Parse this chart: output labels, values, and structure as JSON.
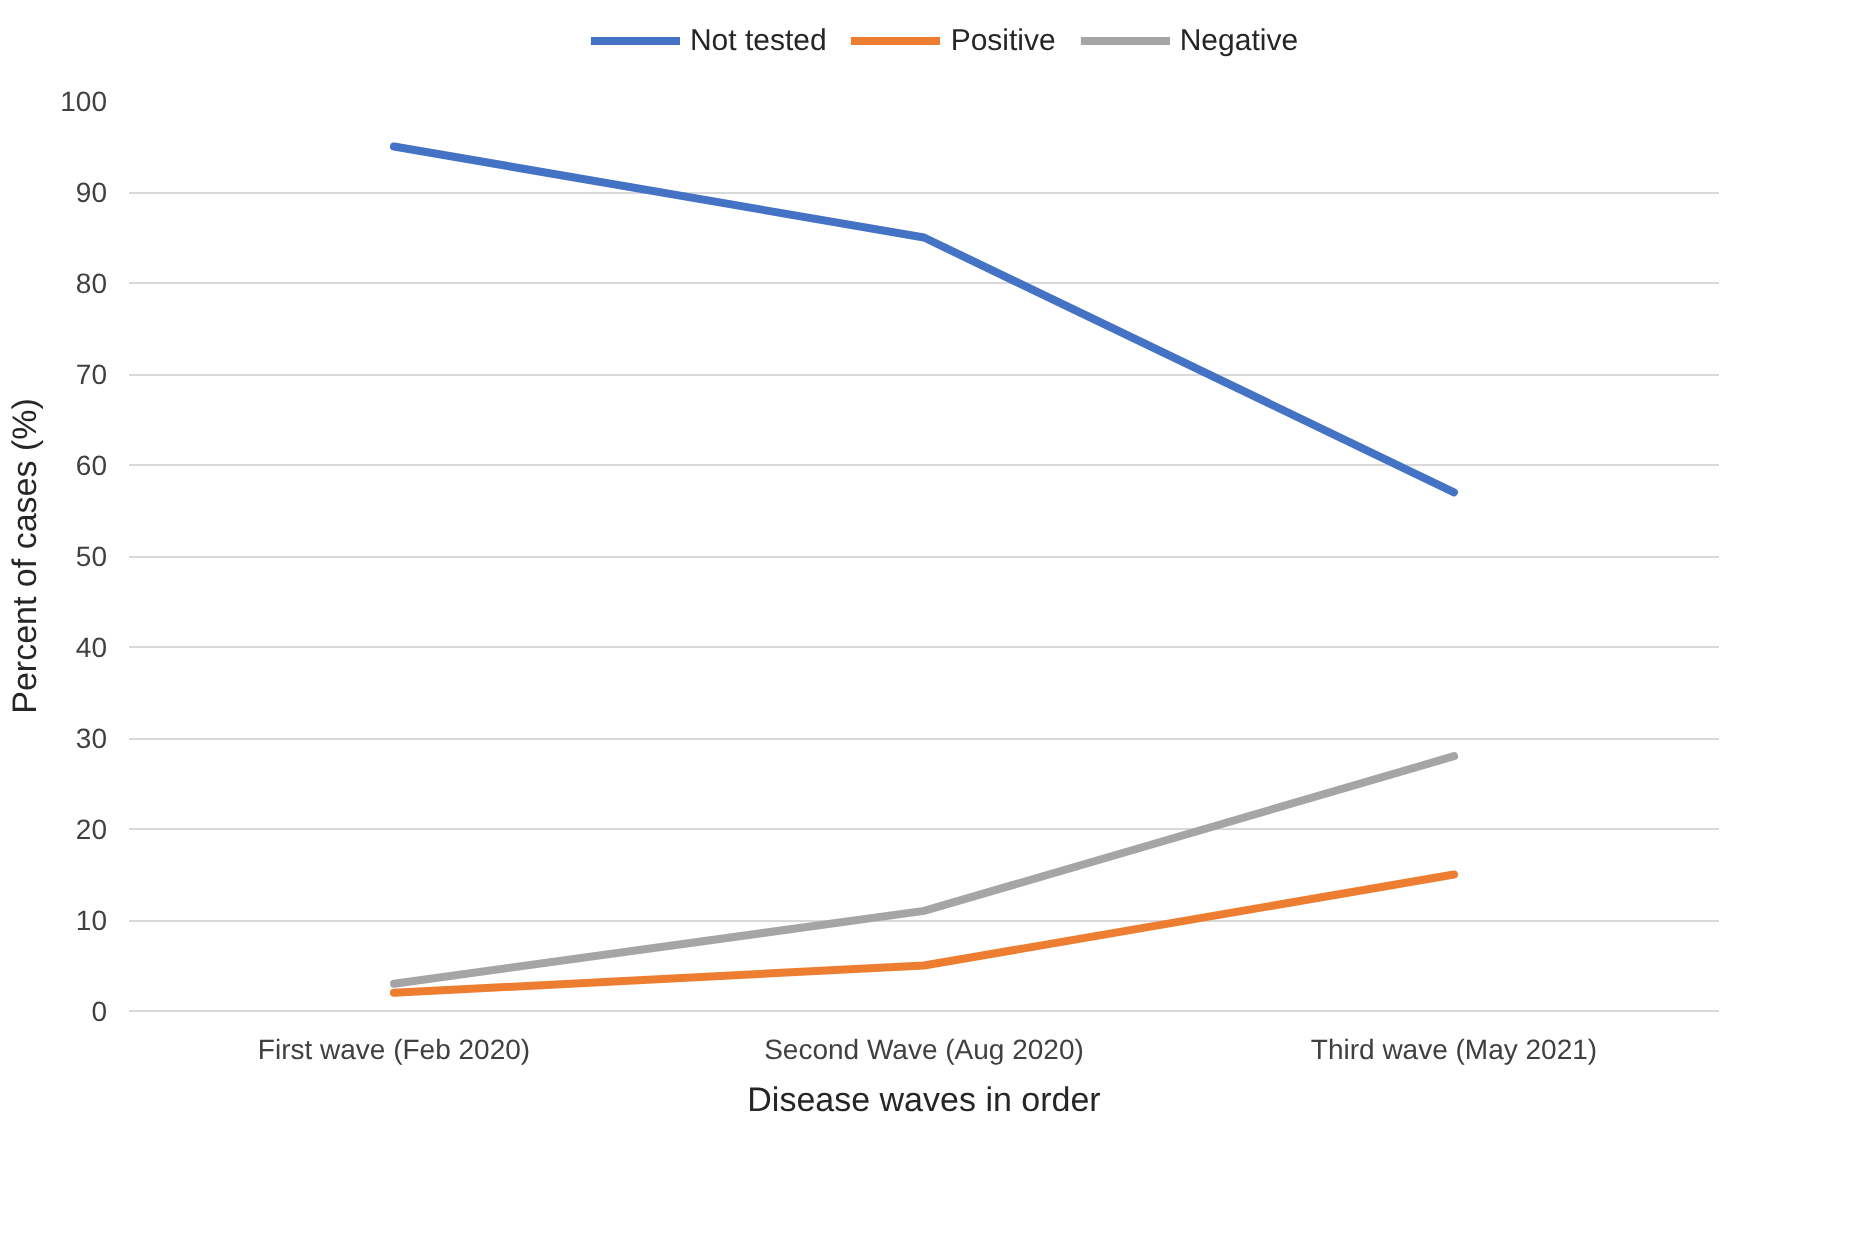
{
  "chart_data": {
    "type": "line",
    "xlabel": "Disease waves in order",
    "ylabel": "Percent of cases (%)",
    "categories": [
      "First wave (Feb 2020)",
      "Second Wave (Aug 2020)",
      "Third wave (May 2021)"
    ],
    "series": [
      {
        "name": "Not tested",
        "color": "#4472c4",
        "values": [
          95,
          85,
          57
        ]
      },
      {
        "name": "Positive",
        "color": "#ed7d31",
        "values": [
          2,
          5,
          15
        ]
      },
      {
        "name": "Negative",
        "color": "#a5a5a5",
        "values": [
          3,
          11,
          28
        ]
      }
    ],
    "ylim": [
      0,
      100
    ],
    "yticks": [
      0,
      10,
      20,
      30,
      40,
      50,
      60,
      70,
      80,
      90,
      100
    ],
    "grid": "y",
    "legend": "top",
    "marker": "none",
    "line_style": "solid"
  }
}
